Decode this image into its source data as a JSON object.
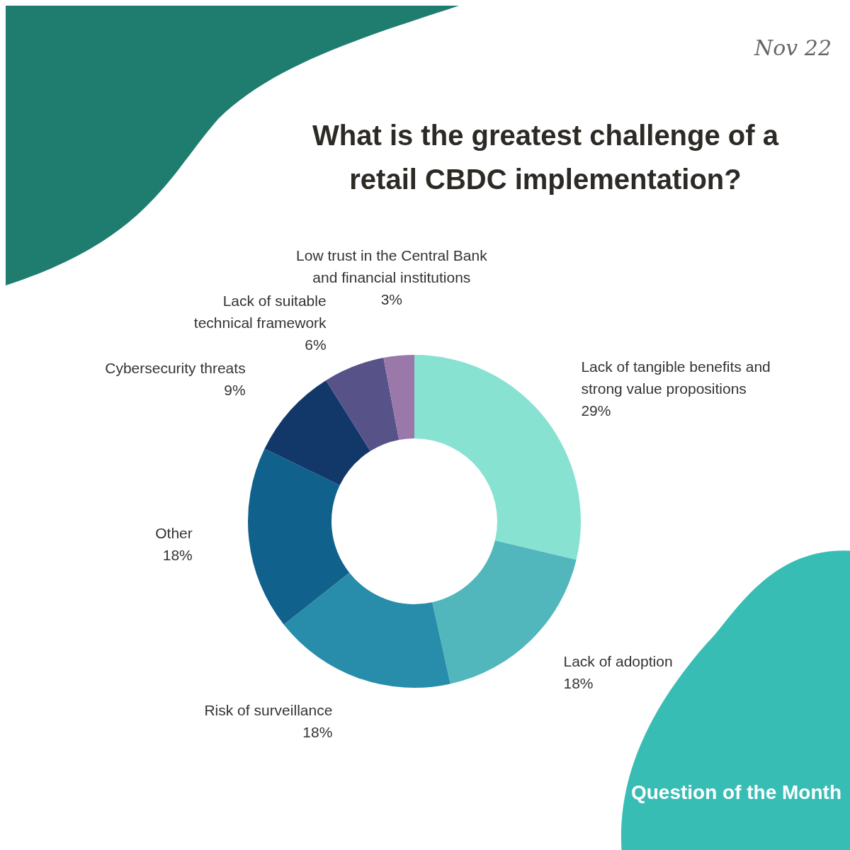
{
  "chart_data": {
    "type": "donut",
    "title": "What is the greatest challenge of a retail CBDC implementation?",
    "categories": [
      "Lack of tangible benefits and strong value propositions",
      "Lack of adoption",
      "Risk of surveillance",
      "Other",
      "Cybersecurity threats",
      "Lack of suitable technical framework",
      "Low trust in the Central Bank and financial institutions"
    ],
    "values": [
      29,
      18,
      18,
      18,
      9,
      6,
      3
    ],
    "value_labels": [
      "29%",
      "18%",
      "18%",
      "18%",
      "9%",
      "6%",
      "3%"
    ],
    "colors": [
      "#87e2d2",
      "#52b6bd",
      "#288cab",
      "#10618c",
      "#12386a",
      "#575288",
      "#9a78aa"
    ],
    "annotations": [
      "Nov 22",
      "Question of the Month"
    ]
  }
}
